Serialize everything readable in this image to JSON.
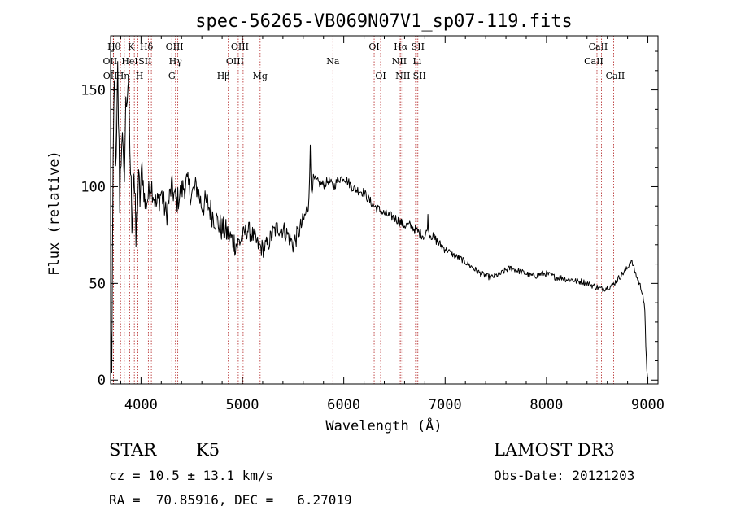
{
  "chart_data": {
    "type": "line",
    "title": "spec-56265-VB069N07V1_sp07-119.fits",
    "xlabel": "Wavelength (Å)",
    "ylabel": "Flux (relative)",
    "xlim": [
      3700,
      9100
    ],
    "ylim": [
      -2,
      178
    ],
    "x_ticks": [
      4000,
      5000,
      6000,
      7000,
      8000,
      9000
    ],
    "y_ticks": [
      0,
      50,
      100,
      150
    ],
    "series": [
      {
        "name": "flux",
        "points": [
          [
            3700,
            0
          ],
          [
            3705,
            25
          ],
          [
            3712,
            4
          ],
          [
            3725,
            120
          ],
          [
            3740,
            150
          ],
          [
            3755,
            105
          ],
          [
            3770,
            158
          ],
          [
            3790,
            95
          ],
          [
            3810,
            130
          ],
          [
            3830,
            100
          ],
          [
            3850,
            140
          ],
          [
            3870,
            155
          ],
          [
            3890,
            120
          ],
          [
            3910,
            85
          ],
          [
            3930,
            110
          ],
          [
            3950,
            70
          ],
          [
            3970,
            100
          ],
          [
            3990,
            95
          ],
          [
            4010,
            110
          ],
          [
            4040,
            90
          ],
          [
            4070,
            95
          ],
          [
            4100,
            102
          ],
          [
            4150,
            90
          ],
          [
            4200,
            97
          ],
          [
            4250,
            85
          ],
          [
            4300,
            100
          ],
          [
            4350,
            92
          ],
          [
            4400,
            98
          ],
          [
            4450,
            102
          ],
          [
            4500,
            96
          ],
          [
            4550,
            100
          ],
          [
            4600,
            90
          ],
          [
            4650,
            92
          ],
          [
            4700,
            86
          ],
          [
            4750,
            82
          ],
          [
            4800,
            78
          ],
          [
            4850,
            76
          ],
          [
            4900,
            72
          ],
          [
            4950,
            70
          ],
          [
            5000,
            74
          ],
          [
            5050,
            78
          ],
          [
            5100,
            75
          ],
          [
            5150,
            70
          ],
          [
            5200,
            68
          ],
          [
            5250,
            70
          ],
          [
            5300,
            76
          ],
          [
            5350,
            79
          ],
          [
            5400,
            78
          ],
          [
            5450,
            75
          ],
          [
            5500,
            70
          ],
          [
            5550,
            76
          ],
          [
            5600,
            82
          ],
          [
            5650,
            90
          ],
          [
            5670,
            118
          ],
          [
            5680,
            100
          ],
          [
            5700,
            104
          ],
          [
            5750,
            102
          ],
          [
            5800,
            101
          ],
          [
            5850,
            103
          ],
          [
            5900,
            100
          ],
          [
            5950,
            104
          ],
          [
            6000,
            105
          ],
          [
            6050,
            102
          ],
          [
            6100,
            99
          ],
          [
            6150,
            98
          ],
          [
            6200,
            97
          ],
          [
            6250,
            93
          ],
          [
            6300,
            90
          ],
          [
            6350,
            88
          ],
          [
            6400,
            86
          ],
          [
            6450,
            85
          ],
          [
            6500,
            84
          ],
          [
            6550,
            82
          ],
          [
            6600,
            80
          ],
          [
            6650,
            80
          ],
          [
            6700,
            78
          ],
          [
            6750,
            76
          ],
          [
            6780,
            75
          ],
          [
            6800,
            74
          ],
          [
            6820,
            77
          ],
          [
            6830,
            84
          ],
          [
            6840,
            76
          ],
          [
            6900,
            73
          ],
          [
            6950,
            70
          ],
          [
            7000,
            68
          ],
          [
            7050,
            66
          ],
          [
            7100,
            64
          ],
          [
            7150,
            63
          ],
          [
            7200,
            61
          ],
          [
            7250,
            59
          ],
          [
            7300,
            57
          ],
          [
            7350,
            55
          ],
          [
            7400,
            54
          ],
          [
            7450,
            53
          ],
          [
            7500,
            54
          ],
          [
            7550,
            55
          ],
          [
            7600,
            57
          ],
          [
            7650,
            58
          ],
          [
            7700,
            57
          ],
          [
            7750,
            56
          ],
          [
            7800,
            55
          ],
          [
            7850,
            54
          ],
          [
            7900,
            54
          ],
          [
            7950,
            55
          ],
          [
            8000,
            55
          ],
          [
            8050,
            54
          ],
          [
            8100,
            53
          ],
          [
            8150,
            53
          ],
          [
            8200,
            52
          ],
          [
            8250,
            52
          ],
          [
            8300,
            51
          ],
          [
            8350,
            51
          ],
          [
            8400,
            50
          ],
          [
            8450,
            49
          ],
          [
            8500,
            48
          ],
          [
            8550,
            47
          ],
          [
            8600,
            48
          ],
          [
            8650,
            49
          ],
          [
            8700,
            52
          ],
          [
            8750,
            55
          ],
          [
            8800,
            58
          ],
          [
            8830,
            62
          ],
          [
            8850,
            60
          ],
          [
            8880,
            55
          ],
          [
            8900,
            52
          ],
          [
            8930,
            48
          ],
          [
            8950,
            45
          ],
          [
            8970,
            35
          ],
          [
            8980,
            18
          ],
          [
            8990,
            5
          ],
          [
            9000,
            0
          ]
        ]
      }
    ],
    "lines": [
      {
        "name": "OII",
        "wavelength": 3727,
        "row": 1,
        "dx": -4
      },
      {
        "name": "OII",
        "wavelength": 3729,
        "row": 2,
        "dx": -4
      },
      {
        "name": "Hθ",
        "wavelength": 3798,
        "row": 0,
        "dx": -8
      },
      {
        "name": "Hη",
        "wavelength": 3835,
        "row": 2,
        "dx": -2
      },
      {
        "name": "K",
        "wavelength": 3934,
        "row": 0,
        "dx": -4
      },
      {
        "name": "HeI",
        "wavelength": 3889,
        "row": 1,
        "dx": 0
      },
      {
        "name": "SII",
        "wavelength": 4072,
        "row": 1,
        "dx": -4
      },
      {
        "name": "H",
        "wavelength": 3969,
        "row": 2,
        "dx": 2
      },
      {
        "name": "Hδ",
        "wavelength": 4102,
        "row": 0,
        "dx": -6
      },
      {
        "name": "OIII",
        "wavelength": 4363,
        "row": 0,
        "dx": -4
      },
      {
        "name": "Hγ",
        "wavelength": 4340,
        "row": 1,
        "dx": 0
      },
      {
        "name": "G",
        "wavelength": 4304,
        "row": 2,
        "dx": 0
      },
      {
        "name": "Hβ",
        "wavelength": 4861,
        "row": 2,
        "dx": -6
      },
      {
        "name": "OIII",
        "wavelength": 4959,
        "row": 1,
        "dx": -4
      },
      {
        "name": "OIII",
        "wavelength": 5007,
        "row": 0,
        "dx": -4
      },
      {
        "name": "Mg",
        "wavelength": 5175,
        "row": 2,
        "dx": 0
      },
      {
        "name": "Na",
        "wavelength": 5893,
        "row": 1,
        "dx": 0
      },
      {
        "name": "OI",
        "wavelength": 6300,
        "row": 0,
        "dx": 0
      },
      {
        "name": "OI",
        "wavelength": 6364,
        "row": 2,
        "dx": 0
      },
      {
        "name": "NII",
        "wavelength": 6548,
        "row": 1,
        "dx": 0
      },
      {
        "name": "NII",
        "wavelength": 6583,
        "row": 2,
        "dx": 0
      },
      {
        "name": "Hα",
        "wavelength": 6563,
        "row": 0,
        "dx": 0
      },
      {
        "name": "SII",
        "wavelength": 6716,
        "row": 0,
        "dx": 2
      },
      {
        "name": "Li",
        "wavelength": 6708,
        "row": 1,
        "dx": 2
      },
      {
        "name": "SII",
        "wavelength": 6731,
        "row": 2,
        "dx": 2
      },
      {
        "name": "CaII",
        "wavelength": 8498,
        "row": 1,
        "dx": -4
      },
      {
        "name": "CaII",
        "wavelength": 8542,
        "row": 0,
        "dx": -4
      },
      {
        "name": "CaII",
        "wavelength": 8662,
        "row": 2,
        "dx": 2
      }
    ]
  },
  "info": {
    "class_label": "STAR",
    "subclass": "K5",
    "survey": "LAMOST DR3",
    "redshift": "cz = 10.5 ± 13.1 km/s",
    "obs_date": "Obs-Date: 20121203",
    "coords": "RA =  70.85916, DEC =   6.27019"
  }
}
